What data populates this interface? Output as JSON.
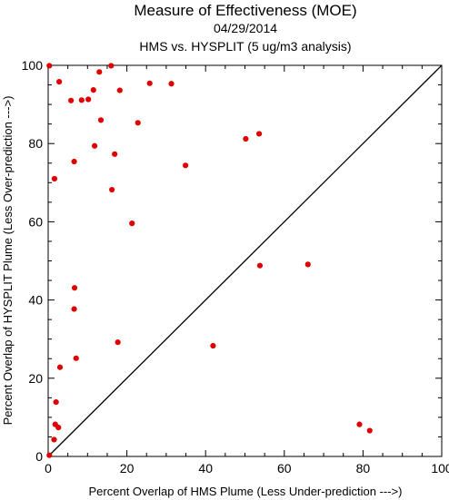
{
  "chart_data": {
    "type": "scatter",
    "title": "Measure of Effectiveness (MOE)",
    "subtitle": "04/29/2014",
    "subtitle2": "HMS vs. HYSPLIT  (5 ug/m3 analysis)",
    "xlabel": "Percent Overlap of HMS Plume (Less Under-prediction --->)",
    "ylabel": "Percent Overlap of HYSPLIT Plume (Less Over-prediction --->)",
    "xlim": [
      0,
      100
    ],
    "ylim": [
      0,
      100
    ],
    "xticks": [
      0,
      20,
      40,
      60,
      80,
      100
    ],
    "yticks": [
      0,
      20,
      40,
      60,
      80,
      100
    ],
    "grid": false,
    "reference_line": {
      "from": [
        0,
        0
      ],
      "to": [
        100,
        100
      ],
      "color": "#000000"
    },
    "marker_color": "#e00000",
    "points": [
      [
        0.3,
        99.9
      ],
      [
        2.8,
        95.8
      ],
      [
        13.0,
        98.3
      ],
      [
        16.0,
        99.9
      ],
      [
        25.8,
        95.4
      ],
      [
        31.3,
        95.3
      ],
      [
        18.2,
        93.6
      ],
      [
        11.5,
        93.7
      ],
      [
        5.8,
        91.0
      ],
      [
        8.5,
        91.1
      ],
      [
        10.2,
        91.3
      ],
      [
        13.4,
        86.0
      ],
      [
        22.8,
        85.3
      ],
      [
        53.6,
        82.5
      ],
      [
        50.2,
        81.2
      ],
      [
        11.8,
        79.4
      ],
      [
        16.9,
        77.3
      ],
      [
        6.6,
        75.4
      ],
      [
        34.9,
        74.4
      ],
      [
        1.6,
        71.0
      ],
      [
        16.2,
        68.2
      ],
      [
        21.3,
        59.6
      ],
      [
        66.0,
        49.1
      ],
      [
        53.8,
        48.8
      ],
      [
        6.7,
        43.1
      ],
      [
        6.6,
        37.7
      ],
      [
        17.7,
        29.2
      ],
      [
        41.9,
        28.3
      ],
      [
        7.1,
        25.1
      ],
      [
        3.0,
        22.8
      ],
      [
        2.0,
        13.9
      ],
      [
        1.8,
        8.2
      ],
      [
        2.6,
        7.4
      ],
      [
        79.1,
        8.2
      ],
      [
        81.7,
        6.6
      ],
      [
        1.5,
        4.3
      ],
      [
        0.3,
        0.3
      ]
    ]
  }
}
